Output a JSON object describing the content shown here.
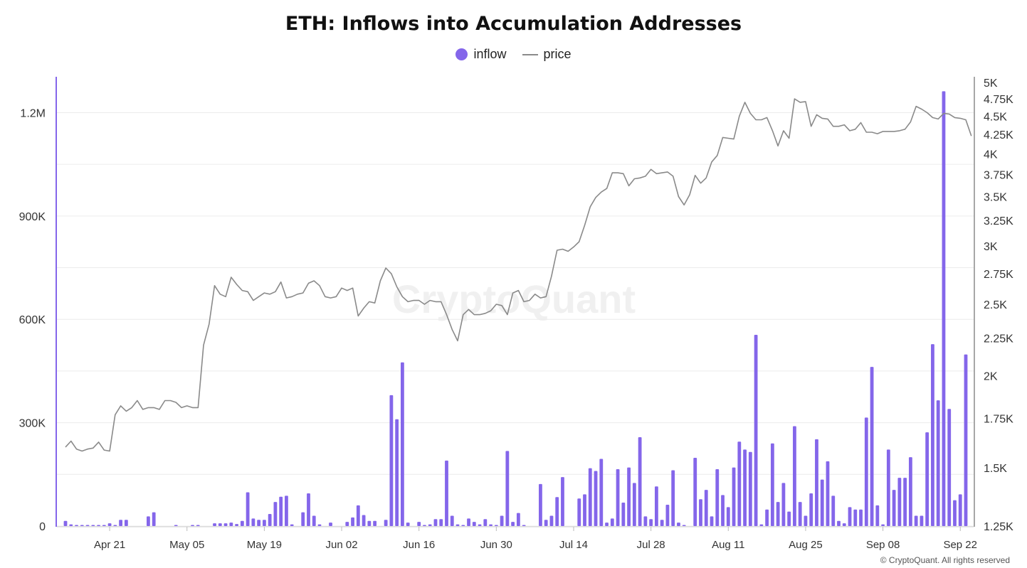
{
  "chart_data": {
    "type": "bar",
    "title": "ETH: Inflows into Accumulation Addresses",
    "legend": [
      {
        "name": "inflow",
        "marker": "dot",
        "color": "#8466ea"
      },
      {
        "name": "price",
        "marker": "line",
        "color": "#8a8a8a"
      }
    ],
    "legend_position": "top-center",
    "grid": true,
    "start_date": "2025-04-13",
    "x_tick_labels": [
      "Apr 21",
      "May 05",
      "May 19",
      "Jun 02",
      "Jun 16",
      "Jun 30",
      "Jul 14",
      "Jul 28",
      "Aug 11",
      "Aug 25",
      "Sep 08",
      "Sep 22"
    ],
    "y_left": {
      "ticks": [
        0,
        300000,
        600000,
        900000,
        1200000
      ],
      "tick_labels": [
        "0",
        "300K",
        "600K",
        "900K",
        "1.2M"
      ],
      "ylim": [
        0,
        1300000
      ]
    },
    "y_right": {
      "scale": "log",
      "ticks": [
        1250,
        1500,
        1750,
        2000,
        2250,
        2500,
        2750,
        3000,
        3250,
        3500,
        3750,
        4000,
        4250,
        4500,
        4750,
        5000
      ],
      "tick_labels": [
        "1.25K",
        "1.5K",
        "1.75K",
        "2K",
        "2.25K",
        "2.5K",
        "2.75K",
        "3K",
        "3.25K",
        "3.5K",
        "3.75K",
        "4K",
        "4.25K",
        "4.5K",
        "4.75K",
        "5K"
      ],
      "ylim": [
        1250,
        5000
      ]
    },
    "series": [
      {
        "name": "inflow",
        "type": "bar",
        "axis": "left",
        "color": "#8466ea",
        "values": [
          15000,
          5000,
          1000,
          2000,
          3000,
          1000,
          1000,
          2000,
          8000,
          3000,
          18000,
          18000,
          0,
          0,
          0,
          28000,
          40000,
          0,
          0,
          0,
          3000,
          0,
          0,
          1000,
          1000,
          0,
          0,
          8000,
          8000,
          8000,
          10000,
          6000,
          15000,
          98000,
          22000,
          18000,
          18000,
          35000,
          70000,
          85000,
          88000,
          5000,
          0,
          40000,
          95000,
          30000,
          5000,
          0,
          10000,
          0,
          0,
          12000,
          25000,
          60000,
          32000,
          15000,
          15000,
          0,
          18000,
          380000,
          310000,
          475000,
          10000,
          0,
          12000,
          3000,
          5000,
          20000,
          20000,
          190000,
          30000,
          5000,
          3000,
          22000,
          12000,
          5000,
          20000,
          5000,
          1000,
          30000,
          218000,
          12000,
          38000,
          1000,
          0,
          0,
          122000,
          18000,
          30000,
          84000,
          142000,
          0,
          0,
          80000,
          92000,
          168000,
          160000,
          195000,
          10000,
          22000,
          165000,
          68000,
          170000,
          125000,
          258000,
          28000,
          20000,
          115000,
          18000,
          62000,
          162000,
          10000,
          3000,
          0,
          198000,
          78000,
          105000,
          28000,
          165000,
          90000,
          55000,
          170000,
          245000,
          222000,
          215000,
          555000,
          5000,
          48000,
          240000,
          70000,
          125000,
          42000,
          290000,
          70000,
          30000,
          95000,
          252000,
          135000,
          188000,
          88000,
          15000,
          8000,
          55000,
          48000,
          48000,
          315000,
          462000,
          60000,
          5000,
          222000,
          105000,
          140000,
          140000,
          200000,
          30000,
          30000,
          272000,
          528000,
          365000,
          1262000,
          340000,
          75000,
          92000,
          498000
        ]
      },
      {
        "name": "price",
        "type": "line",
        "axis": "right",
        "color": "#8a8a8a",
        "values": [
          1600,
          1630,
          1590,
          1580,
          1590,
          1595,
          1625,
          1585,
          1580,
          1770,
          1820,
          1790,
          1810,
          1850,
          1800,
          1810,
          1810,
          1800,
          1850,
          1850,
          1840,
          1810,
          1820,
          1810,
          1810,
          2200,
          2350,
          2650,
          2580,
          2560,
          2720,
          2660,
          2610,
          2600,
          2530,
          2560,
          2590,
          2580,
          2600,
          2680,
          2550,
          2560,
          2580,
          2590,
          2670,
          2690,
          2650,
          2560,
          2550,
          2560,
          2630,
          2610,
          2630,
          2410,
          2470,
          2520,
          2510,
          2690,
          2800,
          2750,
          2640,
          2560,
          2520,
          2530,
          2530,
          2500,
          2530,
          2520,
          2520,
          2420,
          2310,
          2230,
          2420,
          2460,
          2420,
          2420,
          2430,
          2450,
          2500,
          2490,
          2420,
          2590,
          2610,
          2520,
          2530,
          2580,
          2550,
          2560,
          2730,
          2960,
          2970,
          2950,
          2990,
          3040,
          3200,
          3390,
          3490,
          3550,
          3590,
          3770,
          3770,
          3760,
          3620,
          3700,
          3710,
          3730,
          3810,
          3760,
          3770,
          3780,
          3730,
          3500,
          3410,
          3520,
          3740,
          3650,
          3710,
          3900,
          3980,
          4210,
          4200,
          4190,
          4500,
          4700,
          4540,
          4450,
          4450,
          4480,
          4300,
          4100,
          4300,
          4200,
          4750,
          4700,
          4710,
          4360,
          4520,
          4470,
          4460,
          4360,
          4360,
          4380,
          4300,
          4320,
          4410,
          4280,
          4280,
          4260,
          4290,
          4290,
          4290,
          4300,
          4320,
          4420,
          4640,
          4600,
          4550,
          4480,
          4460,
          4540,
          4530,
          4480,
          4470,
          4450,
          4230
        ]
      }
    ],
    "watermark": "CryptoQuant",
    "footer": "© CryptoQuant. All rights reserved"
  }
}
